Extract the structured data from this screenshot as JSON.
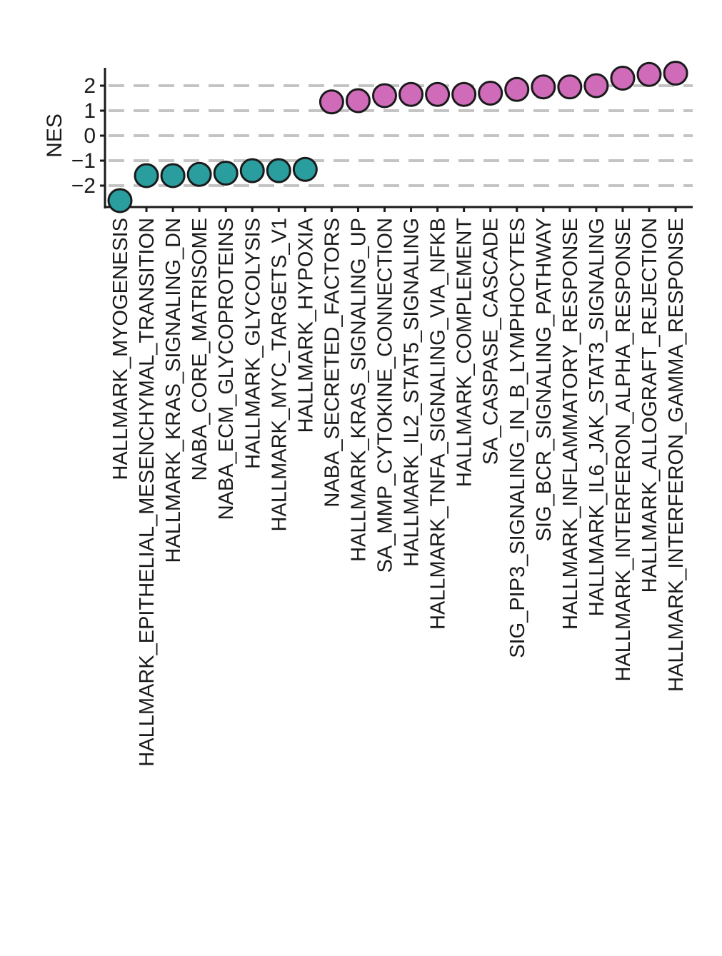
{
  "chart_data": {
    "type": "scatter",
    "title": "",
    "xlabel": "",
    "ylabel": "NES",
    "ylim": [
      -2.8,
      2.8
    ],
    "yticks": [
      2,
      1,
      0,
      -1,
      -2
    ],
    "ytick_labels": [
      "2",
      "1",
      "0",
      "−1",
      "−2"
    ],
    "grid": "horizontal dashed",
    "legend": "none",
    "colors": {
      "negative": "#2a9d9f",
      "positive": "#cf6bb9",
      "outline": "#1a1a1a",
      "grid": "#c4c4c4"
    },
    "categories": [
      "HALLMARK_MYOGENESIS",
      "HALLMARK_EPITHELIAL_MESENCHYMAL_TRANSITION",
      "HALLMARK_KRAS_SIGNALING_DN",
      "NABA_CORE_MATRISOME",
      "NABA_ECM_GLYCOPROTEINS",
      "HALLMARK_GLYCOLYSIS",
      "HALLMARK_MYC_TARGETS_V1",
      "HALLMARK_HYPOXIA",
      "NABA_SECRETED_FACTORS",
      "HALLMARK_KRAS_SIGNALING_UP",
      "SA_MMP_CYTOKINE_CONNECTION",
      "HALLMARK_IL2_STAT5_SIGNALING",
      "HALLMARK_TNFA_SIGNALING_VIA_NFKB",
      "HALLMARK_COMPLEMENT",
      "SA_CASPASE_CASCADE",
      "SIG_PIP3_SIGNALING_IN_B_LYMPHOCYTES",
      "SIG_BCR_SIGNALING_PATHWAY",
      "HALLMARK_INFLAMMATORY_RESPONSE",
      "HALLMARK_IL6_JAK_STAT3_SIGNALING",
      "HALLMARK_INTERFERON_ALPHA_RESPONSE",
      "HALLMARK_ALLOGRAFT_REJECTION",
      "HALLMARK_INTERFERON_GAMMA_RESPONSE"
    ],
    "values": [
      -2.6,
      -1.6,
      -1.6,
      -1.55,
      -1.5,
      -1.4,
      -1.4,
      -1.35,
      1.35,
      1.4,
      1.6,
      1.65,
      1.65,
      1.65,
      1.7,
      1.85,
      1.95,
      1.95,
      2.0,
      2.3,
      2.45,
      2.5
    ]
  }
}
